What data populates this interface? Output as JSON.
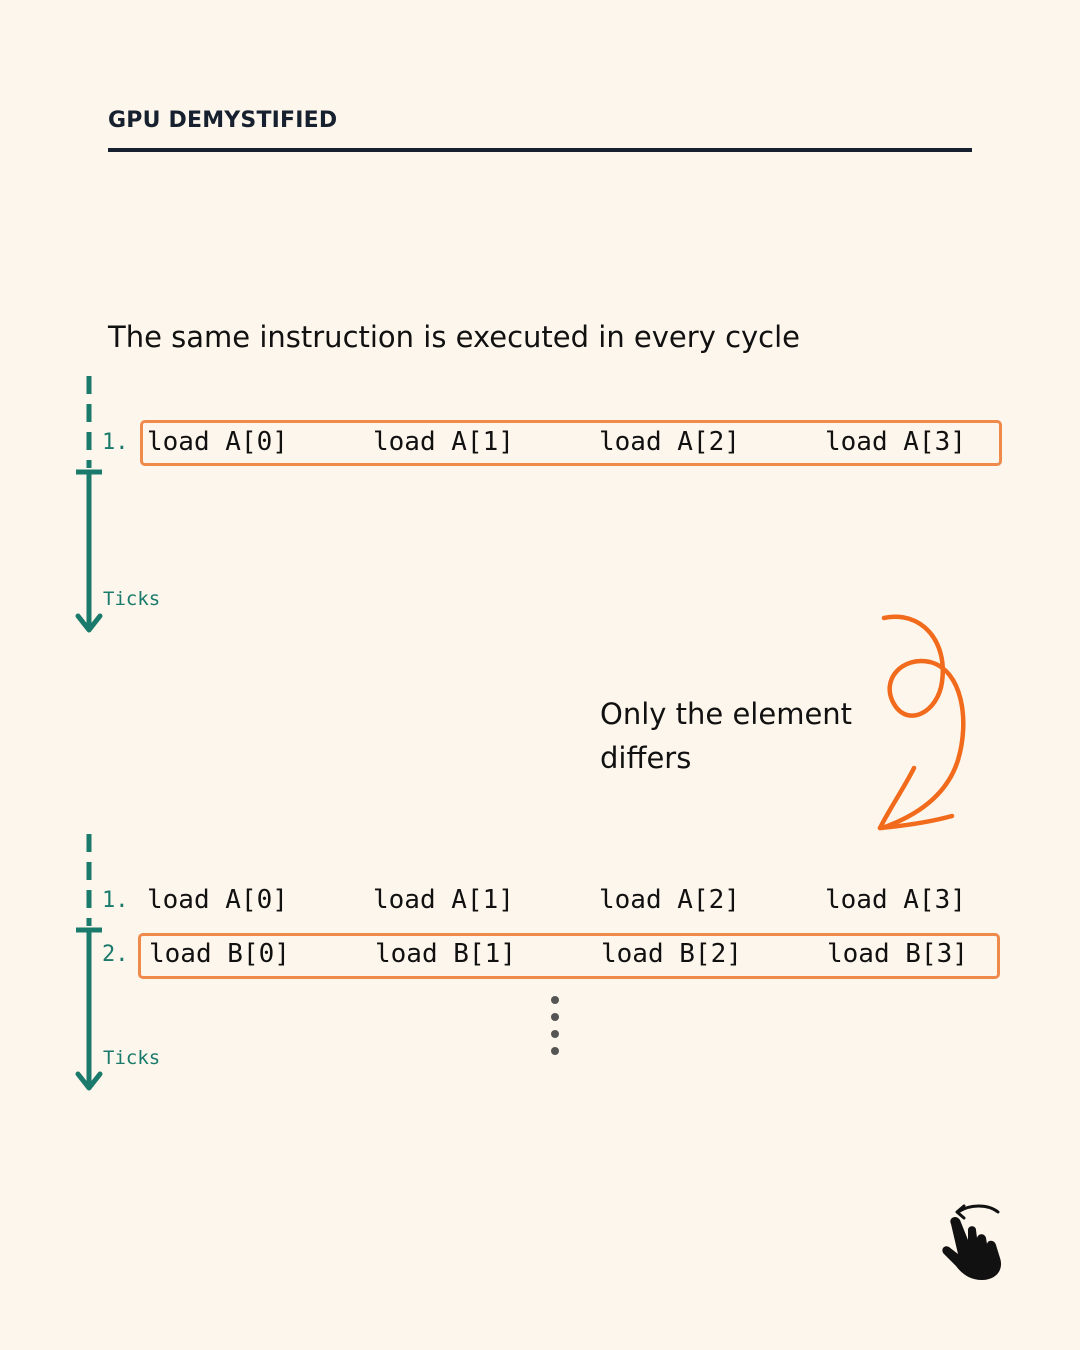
{
  "header": {
    "brand": "GPU DEMYSTIFIED"
  },
  "heading": "The same instruction is executed in every cycle",
  "note": {
    "line1": "Only the element",
    "line2": "differs"
  },
  "timeline": {
    "label": "Ticks"
  },
  "diagram_top": {
    "rows": [
      {
        "number": "1.",
        "instructions": [
          "load A[0]",
          "load A[1]",
          "load A[2]",
          "load A[3]"
        ],
        "highlighted": true
      }
    ]
  },
  "diagram_bottom": {
    "rows": [
      {
        "number": "1.",
        "instructions": [
          "load A[0]",
          "load A[1]",
          "load A[2]",
          "load A[3]"
        ],
        "highlighted": false
      },
      {
        "number": "2.",
        "instructions": [
          "load B[0]",
          "load B[1]",
          "load B[2]",
          "load B[3]"
        ],
        "highlighted": true
      }
    ]
  },
  "colors": {
    "teal": "#1a7a6b",
    "orange": "#f08a4b",
    "arrow_orange": "#f26a1b",
    "ink": "#16202e",
    "background": "#fdf6ec"
  },
  "icons": {
    "swipe": "swipe-hand-icon",
    "ellipsis": "vertical-ellipsis-icon",
    "curly_arrow": "curly-arrow-icon"
  }
}
